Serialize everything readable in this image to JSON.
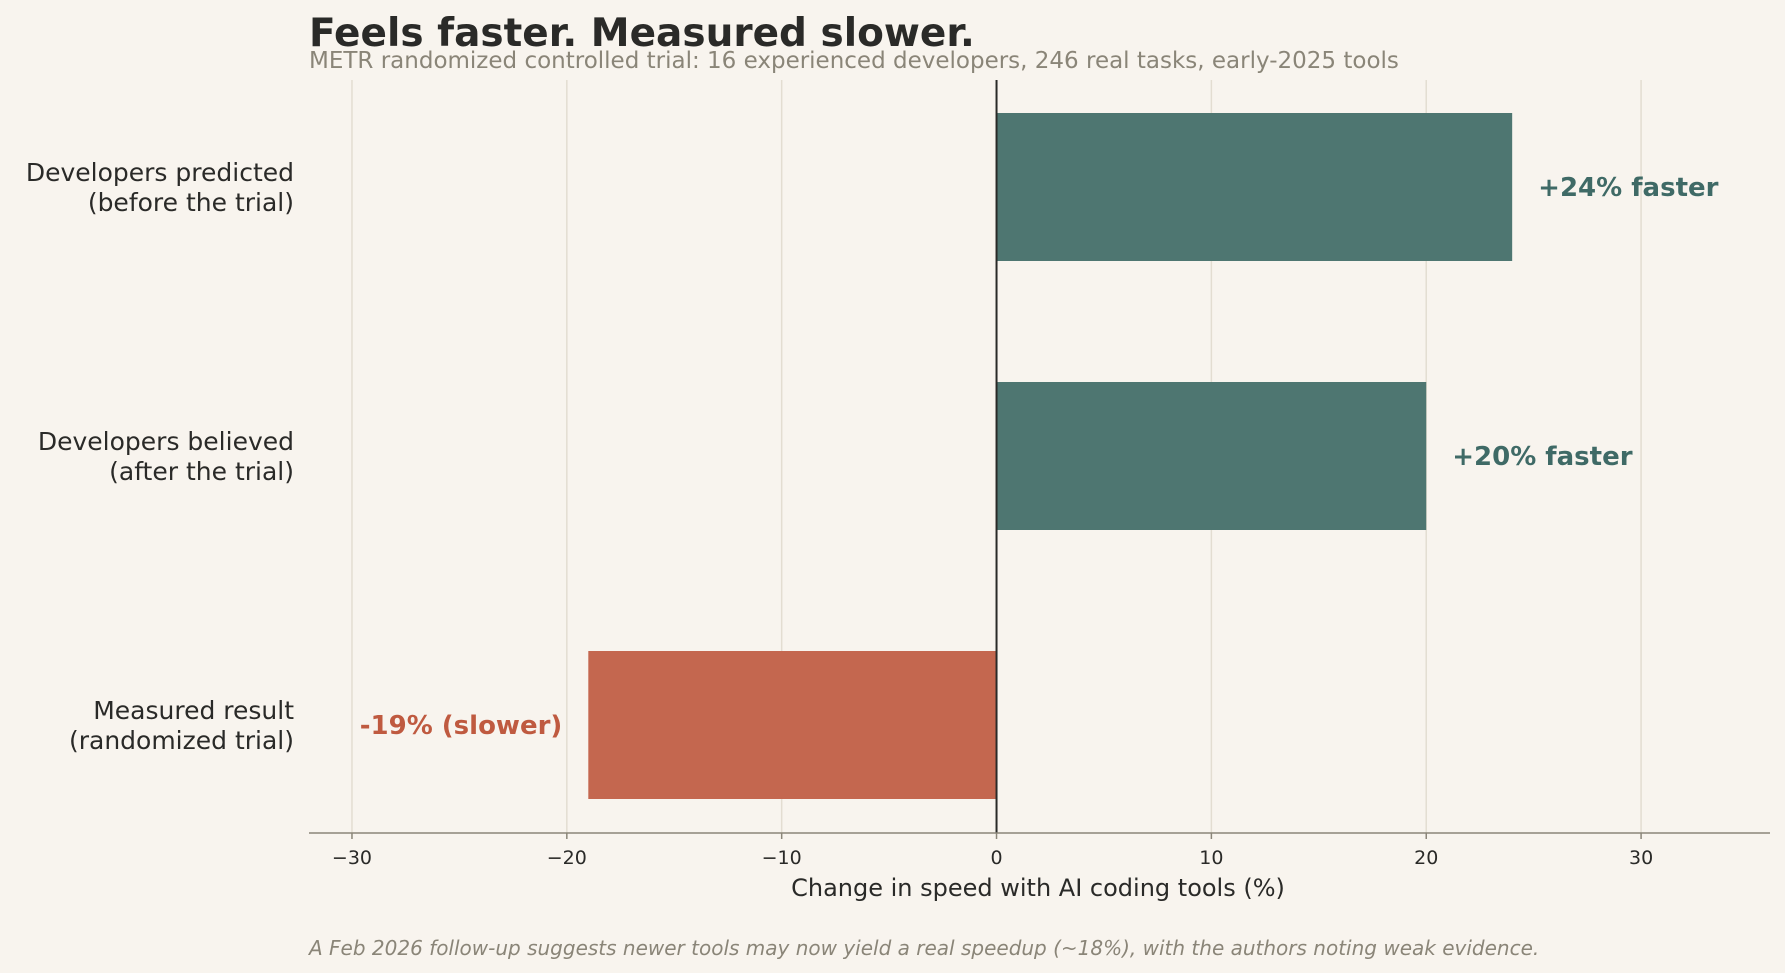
{
  "colors": {
    "background": "#f8f4ee",
    "positive": "#4e7671",
    "negative": "#c4674f",
    "positive_label": "#3f6a66",
    "negative_label": "#bf5a40",
    "grid": "#e3ddd1",
    "axis": "#8a8578",
    "text": "#2a2a28",
    "muted": "#8a8578"
  },
  "chart_data": {
    "type": "bar",
    "orientation": "horizontal",
    "title": "Feels faster. Measured slower.",
    "subtitle": "METR randomized controlled trial: 16 experienced developers, 246 real tasks, early-2025 tools",
    "xlabel": "Change in speed with AI coding tools (%)",
    "ylabel": "",
    "xlim": [
      -32,
      36
    ],
    "xticks": [
      -30,
      -20,
      -10,
      0,
      10,
      20,
      30
    ],
    "xtick_labels": [
      "−30",
      "−20",
      "−10",
      "0",
      "10",
      "20",
      "30"
    ],
    "grid": "vertical",
    "legend": "none",
    "bars": [
      {
        "category_lines": [
          "Developers predicted",
          "(before the trial)"
        ],
        "value": 24,
        "label": "+24% faster",
        "color": "positive"
      },
      {
        "category_lines": [
          "Developers believed",
          "(after the trial)"
        ],
        "value": 20,
        "label": "+20% faster",
        "color": "positive"
      },
      {
        "category_lines": [
          "Measured result",
          "(randomized trial)"
        ],
        "value": -19,
        "label": "-19% (slower)",
        "color": "negative"
      }
    ],
    "footnote": "A Feb 2026 follow-up suggests newer tools may now yield a real speedup (~18%), with the authors noting weak evidence."
  }
}
